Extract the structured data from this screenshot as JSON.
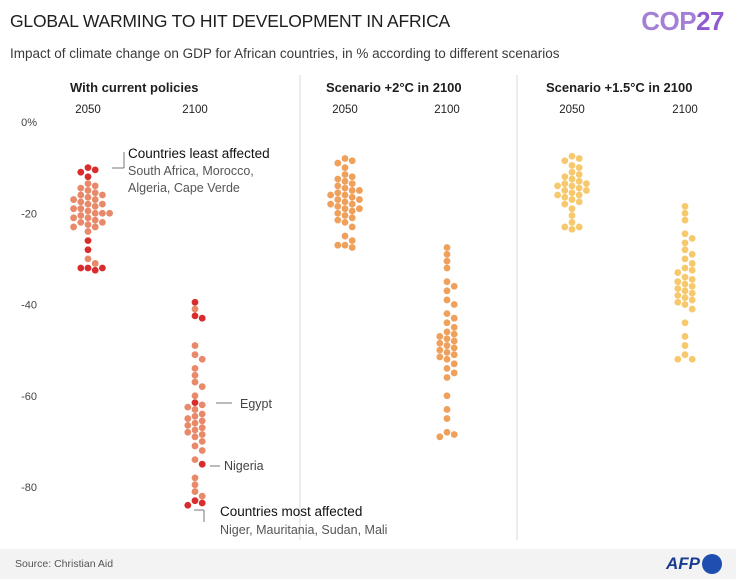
{
  "header": {
    "title": "GLOBAL WARMING TO HIT DEVELOPMENT IN AFRICA",
    "logo_text": "COP",
    "logo_num": "27",
    "subtitle": "Impact of climate change on GDP for African countries, in % according to different scenarios"
  },
  "footer": {
    "source": "Source: Christian Aid",
    "logo": "AFP"
  },
  "colors": {
    "current_policies": "#e8896a",
    "current_highlight": "#d92d2d",
    "scenario_2c": "#efa15c",
    "scenario_2c_dark": "#d8793a",
    "scenario_15c": "#f7c96e",
    "scenario_15c_dark": "#e3a21d",
    "divider": "#d9d9d9"
  },
  "chart_data": {
    "type": "scatter",
    "ylim": [
      -90,
      0
    ],
    "yticks": [
      0,
      -20,
      -40,
      -60,
      -80
    ],
    "ytick_labels": [
      "0%",
      "-20",
      "-40",
      "-60",
      "-80"
    ],
    "panels": [
      {
        "title": "With current policies",
        "columns": [
          {
            "label": "2050",
            "values": [
              -10,
              -10.5,
              -11,
              -12,
              -13.5,
              -14,
              -14.5,
              -15,
              -15.5,
              -16,
              -16,
              -16.5,
              -17,
              -17,
              -17.5,
              -18,
              -18,
              -18.5,
              -19,
              -19,
              -19.5,
              -20,
              -20,
              -20,
              -20.5,
              -21,
              -21,
              -21.5,
              -22,
              -22,
              -22.5,
              -23,
              -23,
              -24,
              -26,
              -28,
              -30,
              -31,
              -32,
              -32,
              -32.5,
              -32
            ]
          },
          {
            "label": "2100",
            "values": [
              -39.5,
              -41,
              -42.5,
              -43,
              -49,
              -51,
              -52,
              -54,
              -55.5,
              -57,
              -58,
              -60,
              -61.5,
              -62,
              -62.5,
              -63,
              -64,
              -64.5,
              -65,
              -65.5,
              -66,
              -66.5,
              -67,
              -67.5,
              -68,
              -68.5,
              -69,
              -70,
              -71,
              -72,
              -74,
              -75,
              -78,
              -79.5,
              -81,
              -82,
              -83,
              -83.5,
              -84
            ]
          }
        ],
        "highlights": [
          {
            "column": 0,
            "values": [
              -10,
              -10.5,
              -11,
              -12,
              -26,
              -28,
              -32,
              -32,
              -32.5,
              -32
            ]
          },
          {
            "column": 1,
            "values": [
              -39.5,
              -42.5,
              -43,
              -61.5,
              -75,
              -83,
              -83.5,
              -84
            ]
          }
        ],
        "annotations": [
          {
            "title": "Countries least affected",
            "detail": "South Africa, Morocco, Algeria, Cape Verde"
          },
          {
            "title": "",
            "detail": "Egypt"
          },
          {
            "title": "",
            "detail": "Nigeria"
          },
          {
            "title": "Countries most affected",
            "detail": "Niger, Mauritania, Sudan, Mali"
          }
        ]
      },
      {
        "title": "Scenario +2°C in 2100",
        "columns": [
          {
            "label": "2050",
            "values": [
              -8,
              -8.5,
              -9,
              -10,
              -11.5,
              -12,
              -12.5,
              -13,
              -13.5,
              -14,
              -14.5,
              -15,
              -15,
              -15.5,
              -16,
              -16,
              -16.5,
              -17,
              -17,
              -17.5,
              -18,
              -18,
              -18.5,
              -19,
              -19,
              -19.5,
              -20,
              -20.5,
              -21,
              -21.5,
              -22,
              -23,
              -25,
              -26,
              -27,
              -27,
              -27.5
            ]
          },
          {
            "label": "2100",
            "values": [
              -27.5,
              -29,
              -30.5,
              -32,
              -35,
              -36,
              -37,
              -39,
              -40,
              -42,
              -43,
              -44,
              -45,
              -46,
              -46.5,
              -47,
              -47.5,
              -48,
              -48.5,
              -49,
              -49.5,
              -50,
              -50.5,
              -51,
              -51.5,
              -52,
              -53,
              -54,
              -55,
              -56,
              -60,
              -63,
              -65,
              -68,
              -68.5,
              -69
            ]
          }
        ]
      },
      {
        "title": "Scenario +1.5°C in 2100",
        "columns": [
          {
            "label": "2050",
            "values": [
              -7.5,
              -8,
              -8.5,
              -9.5,
              -10,
              -11,
              -11.5,
              -12,
              -12.5,
              -13,
              -13.5,
              -13.5,
              -14,
              -14,
              -14.5,
              -15,
              -15,
              -15.5,
              -16,
              -16,
              -16.5,
              -17,
              -17.5,
              -18,
              -19,
              -20.5,
              -22,
              -23,
              -23.5,
              -23
            ]
          },
          {
            "label": "2100",
            "values": [
              -18.5,
              -20,
              -21.5,
              -24.5,
              -25.5,
              -26.5,
              -28,
              -29,
              -30,
              -31,
              -32,
              -32.5,
              -33,
              -34,
              -34.5,
              -35,
              -35.5,
              -36,
              -36.5,
              -37,
              -37.5,
              -38,
              -38.5,
              -39,
              -39.5,
              -40,
              -41,
              -44,
              -47,
              -49,
              -51,
              -52,
              -52
            ]
          }
        ]
      }
    ]
  }
}
